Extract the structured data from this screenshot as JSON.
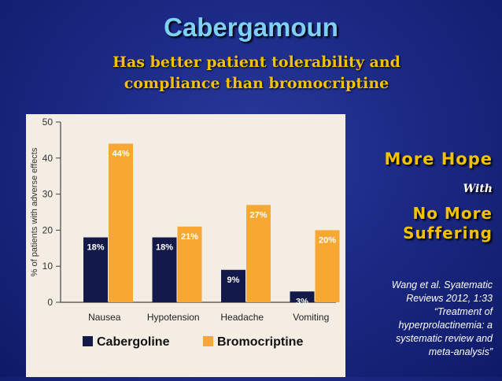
{
  "slide": {
    "title": "Cabergamoun",
    "subtitle_line1": "Has better patient tolerability and",
    "subtitle_line2": "compliance than bromocriptine",
    "side_heading_1": "More Hope",
    "side_with": "With",
    "side_heading_2_line1": "No More",
    "side_heading_2_line2": "Suffering",
    "citation_lines": [
      "Wang et al. Syatematic",
      "Reviews 2012, 1:33",
      "“Treatment of",
      "hyperprolactinemia: a",
      "systematic review and",
      "meta-analysis”"
    ]
  },
  "colors": {
    "cabergoline": "#131a4a",
    "bromocriptine": "#f7a833",
    "title": "#7fd0f5",
    "accent": "#f2c200"
  },
  "chart_data": {
    "type": "bar",
    "ylabel": "% of patients with adverse effects",
    "ylim": [
      0,
      50
    ],
    "yticks": [
      0,
      10,
      20,
      30,
      40,
      50
    ],
    "categories": [
      "Nausea",
      "Hypotension",
      "Headache",
      "Vomiting"
    ],
    "series": [
      {
        "name": "Cabergoline",
        "values": [
          18,
          18,
          9,
          3
        ],
        "labels": [
          "18%",
          "18%",
          "9%",
          "3%"
        ]
      },
      {
        "name": "Bromocriptine",
        "values": [
          44,
          21,
          27,
          20
        ],
        "labels": [
          "44%",
          "21%",
          "27%",
          "20%"
        ]
      }
    ],
    "legend_position": "bottom",
    "grid": false
  }
}
